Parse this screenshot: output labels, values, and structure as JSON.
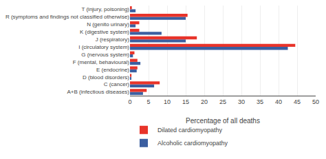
{
  "chart_data": {
    "type": "bar",
    "orientation": "horizontal",
    "categories": [
      "A+B (infectious diseases)",
      "C (cancer)",
      "D (blood disorders)",
      "E (endocrine)",
      "F (mental, behavioural)",
      "G (nervous system)",
      "I (circulatory system)",
      "J (respiratory)",
      "K (digestive system)",
      "N (genito urinary)",
      "R (symptoms and findings not classified otherwise)",
      "T (injury, poisoning)"
    ],
    "series": [
      {
        "name": "Dilated cardiomyopathy",
        "color": "#e8342a",
        "values": [
          4.5,
          8.0,
          0.4,
          2.0,
          2.0,
          1.2,
          44.5,
          18.0,
          2.5,
          2.5,
          15.5,
          0.5
        ]
      },
      {
        "name": "Alcoholic cardiomyopathy",
        "color": "#3b5fa0",
        "values": [
          3.5,
          6.5,
          0.2,
          1.8,
          2.8,
          0.8,
          42.5,
          15.0,
          8.5,
          1.5,
          15.0,
          1.5
        ]
      }
    ],
    "x_label": "Percentage of all deaths",
    "xlim": [
      0,
      50
    ],
    "xticks": [
      0,
      5,
      10,
      15,
      20,
      25,
      30,
      35,
      40,
      45,
      50
    ],
    "grid": true,
    "legend": "bottom left"
  }
}
